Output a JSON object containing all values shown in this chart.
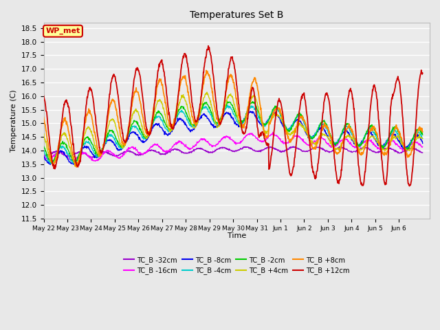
{
  "title": "Temperatures Set B",
  "xlabel": "Time",
  "ylabel": "Temperature (C)",
  "ylim": [
    11.5,
    18.7
  ],
  "background_color": "#e8e8e8",
  "plot_bg": "#ebebeb",
  "grid_color": "#ffffff",
  "wp_met_label": "WP_met",
  "wp_met_bg": "#ffff99",
  "wp_met_border": "#cc0000",
  "series": [
    {
      "label": "TC_B -32cm",
      "color": "#9900cc",
      "lw": 1.0
    },
    {
      "label": "TC_B -16cm",
      "color": "#ff00ff",
      "lw": 1.0
    },
    {
      "label": "TC_B -8cm",
      "color": "#0000ee",
      "lw": 1.0
    },
    {
      "label": "TC_B -4cm",
      "color": "#00cccc",
      "lw": 1.0
    },
    {
      "label": "TC_B -2cm",
      "color": "#00cc00",
      "lw": 1.0
    },
    {
      "label": "TC_B +4cm",
      "color": "#cccc00",
      "lw": 1.0
    },
    {
      "label": "TC_B +8cm",
      "color": "#ff8800",
      "lw": 1.3
    },
    {
      "label": "TC_B +12cm",
      "color": "#cc0000",
      "lw": 1.3
    }
  ],
  "xtick_labels": [
    "May 22",
    "May 23",
    "May 24",
    "May 25",
    "May 26",
    "May 27",
    "May 28",
    "May 29",
    "May 30",
    "May 31",
    "Jun 1",
    "Jun 2",
    "Jun 3",
    "Jun 4",
    "Jun 5",
    "Jun 6"
  ],
  "ytick_values": [
    11.5,
    12.0,
    12.5,
    13.0,
    13.5,
    14.0,
    14.5,
    15.0,
    15.5,
    16.0,
    16.5,
    17.0,
    17.5,
    18.0,
    18.5
  ]
}
